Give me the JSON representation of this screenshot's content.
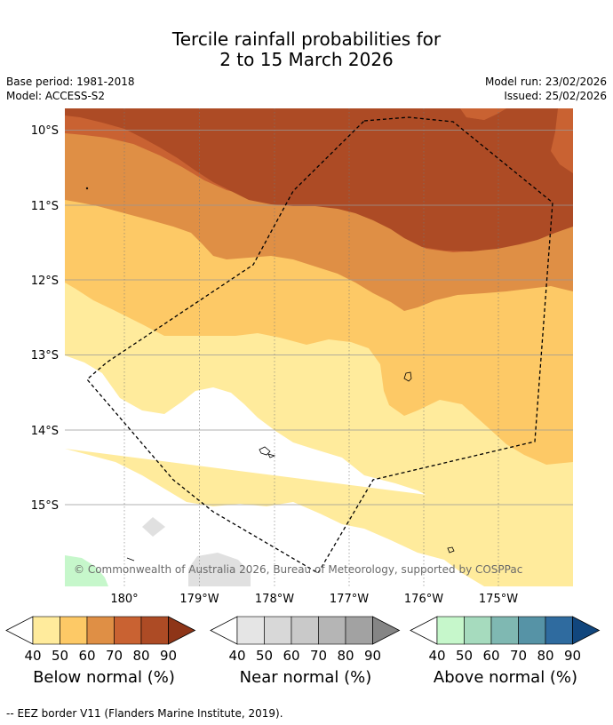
{
  "title": {
    "line1": "Tercile rainfall probabilities for",
    "line2": "2 to 15 March 2026"
  },
  "meta": {
    "base_period": "Base period: 1981-2018",
    "model": "Model: ACCESS-S2",
    "model_run": "Model run: 23/02/2026",
    "issued": "Issued: 25/02/2026"
  },
  "map": {
    "lat_labels": [
      "10°S",
      "11°S",
      "12°S",
      "13°S",
      "14°S",
      "15°S"
    ],
    "lon_labels": [
      "180°",
      "179°W",
      "178°W",
      "177°W",
      "176°W",
      "175°W"
    ],
    "copyright": "© Commonwealth of Australia 2026, Bureau of Meteorology, supported by COSPPac",
    "colors": {
      "below_90": "#ad4b25",
      "below_80": "#c96232",
      "below_70": "#df8f45",
      "below_60": "#fdc966",
      "below_50": "#ffeb9c",
      "normal": "#ffffff",
      "near_50": "#e0e0e0",
      "above_50": "#c6f7cb"
    }
  },
  "colorbars": [
    {
      "label": "Below normal (%)",
      "ticks": [
        "40",
        "50",
        "60",
        "70",
        "80",
        "90"
      ],
      "colors": [
        "#ffeb9c",
        "#fdc966",
        "#df8f45",
        "#c96232",
        "#ad4b25"
      ],
      "extend_color": "#8e3518"
    },
    {
      "label": "Near normal (%)",
      "ticks": [
        "40",
        "50",
        "60",
        "70",
        "80",
        "90"
      ],
      "colors": [
        "#e5e5e5",
        "#d8d8d8",
        "#c9c9c9",
        "#b5b5b5",
        "#a2a2a2"
      ],
      "extend_color": "#858585"
    },
    {
      "label": "Above normal (%)",
      "ticks": [
        "40",
        "50",
        "60",
        "70",
        "80",
        "90"
      ],
      "colors": [
        "#c6f7cb",
        "#a6dbbe",
        "#7fb8b2",
        "#5693a6",
        "#2f6b9f"
      ],
      "extend_color": "#11467d"
    }
  ],
  "footer": {
    "legend_text": "-- EEZ border V11 (Flanders Marine Institute, 2019)."
  }
}
